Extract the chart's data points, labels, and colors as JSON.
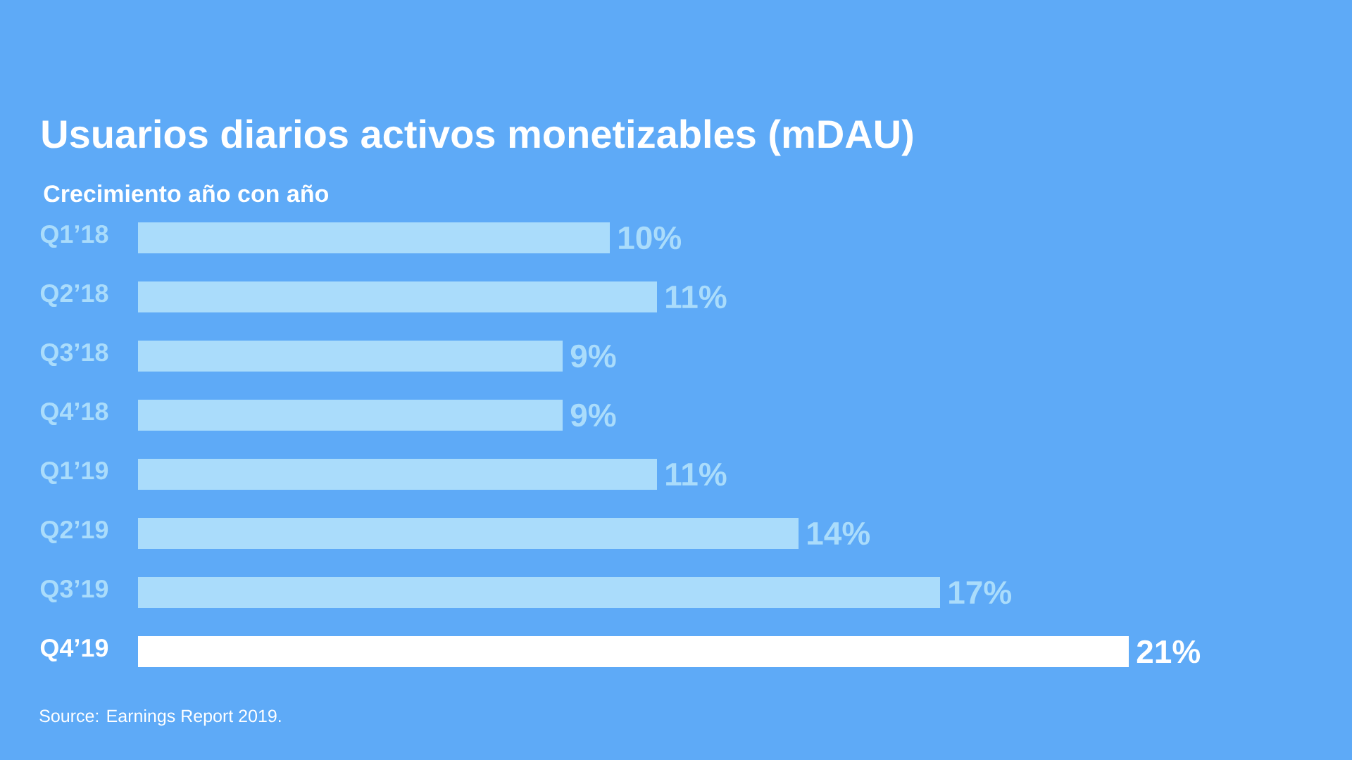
{
  "chart_data": {
    "type": "bar",
    "orientation": "horizontal",
    "title": "Usuarios diarios activos monetizables (mDAU)",
    "subtitle": "Crecimiento año con año",
    "categories": [
      "Q1’18",
      "Q2’18",
      "Q3’18",
      "Q4’18",
      "Q1’19",
      "Q2’19",
      "Q3’19",
      "Q4’19"
    ],
    "values": [
      10,
      11,
      9,
      9,
      11,
      14,
      17,
      21
    ],
    "colors": [
      "#aadcfb",
      "#aadcfb",
      "#aadcfb",
      "#aadcfb",
      "#aadcfb",
      "#aadcfb",
      "#aadcfb",
      "#ffffff"
    ],
    "value_labels": [
      "10%",
      "11%",
      "9%",
      "9%",
      "11%",
      "14%",
      "17%",
      "21%"
    ],
    "tick_labels": "y",
    "annotations": [
      "Source: Earnings Report 2019."
    ]
  }
}
